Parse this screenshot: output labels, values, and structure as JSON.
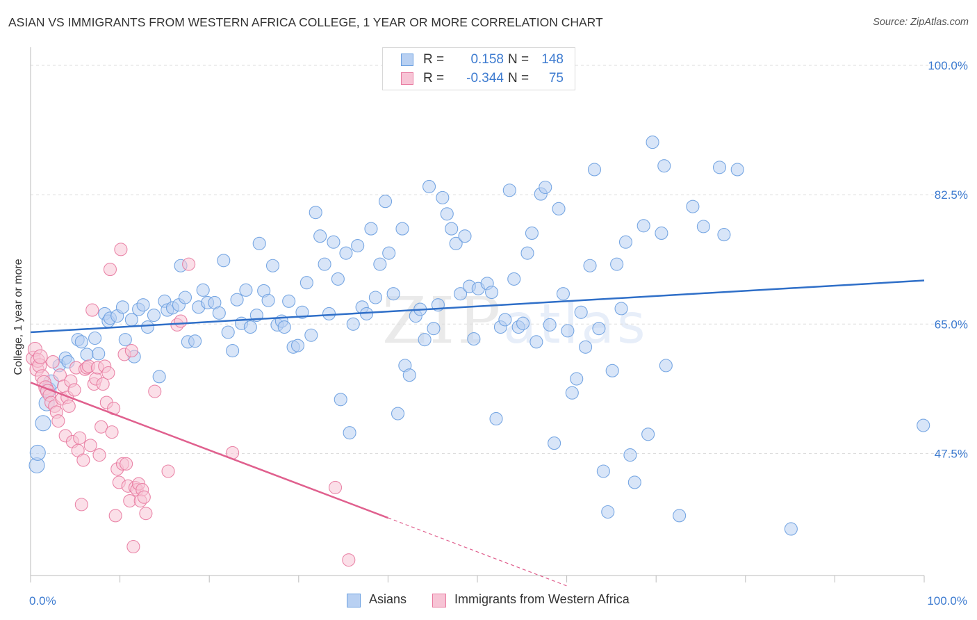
{
  "title": "ASIAN VS IMMIGRANTS FROM WESTERN AFRICA COLLEGE, 1 YEAR OR MORE CORRELATION CHART",
  "source": "Source: ZipAtlas.com",
  "watermark": {
    "zip": "ZIP",
    "atlas": "atlas"
  },
  "colors": {
    "asian": "#6a9fe0",
    "asian_fill": "#b8d0f2",
    "wafrica": "#e87aa0",
    "wafrica_fill": "#f7c4d5",
    "asian_line": "#2f6fc8",
    "wafrica_line": "#e0608e",
    "tick_label": "#3d7bd0"
  },
  "legend_top": [
    {
      "r_label": "R =",
      "r_value": "0.158",
      "n_label": "N =",
      "n_value": "148"
    },
    {
      "r_label": "R =",
      "r_value": "-0.344",
      "n_label": "N =",
      "n_value": "75"
    }
  ],
  "legend_bottom": [
    {
      "label": "Asians"
    },
    {
      "label": "Immigrants from Western Africa"
    }
  ],
  "chart_data": {
    "type": "scatter",
    "title": "ASIAN VS IMMIGRANTS FROM WESTERN AFRICA COLLEGE, 1 YEAR OR MORE CORRELATION CHART",
    "xlabel": "",
    "ylabel": "College, 1 year or more",
    "xlim": [
      0,
      100
    ],
    "ylim": [
      31,
      101.5
    ],
    "x_tick_labels": [
      {
        "value": 0,
        "label": "0.0%"
      },
      {
        "value": 100,
        "label": "100.0%"
      }
    ],
    "y_tick_labels": [
      {
        "value": 100,
        "label": "100.0%"
      },
      {
        "value": 82.5,
        "label": "82.5%"
      },
      {
        "value": 65,
        "label": "65.0%"
      },
      {
        "value": 47.5,
        "label": "47.5%"
      }
    ],
    "grid": true,
    "legend_position": "top-center",
    "series": [
      {
        "name": "Asians",
        "r": 0.158,
        "n": 148,
        "trend": {
          "x0": 0,
          "y0": 63.9,
          "x1": 100,
          "y1": 70.9
        },
        "points": [
          [
            0.7,
            45.9
          ],
          [
            0.8,
            47.6
          ],
          [
            1.4,
            51.6
          ],
          [
            1.8,
            54.3
          ],
          [
            2.0,
            56.1
          ],
          [
            2.3,
            57.1
          ],
          [
            3.2,
            59.4
          ],
          [
            3.9,
            60.4
          ],
          [
            4.2,
            59.9
          ],
          [
            5.3,
            62.9
          ],
          [
            5.7,
            62.6
          ],
          [
            6.3,
            60.9
          ],
          [
            7.2,
            63.1
          ],
          [
            7.6,
            61.0
          ],
          [
            8.3,
            66.4
          ],
          [
            8.7,
            65.4
          ],
          [
            8.9,
            65.8
          ],
          [
            9.7,
            66.1
          ],
          [
            10.3,
            67.3
          ],
          [
            10.6,
            62.9
          ],
          [
            11.3,
            65.6
          ],
          [
            11.6,
            60.6
          ],
          [
            12.1,
            67.0
          ],
          [
            12.6,
            67.6
          ],
          [
            13.1,
            64.6
          ],
          [
            13.8,
            66.2
          ],
          [
            14.4,
            57.9
          ],
          [
            15.0,
            68.1
          ],
          [
            15.3,
            66.9
          ],
          [
            15.9,
            67.2
          ],
          [
            16.6,
            67.6
          ],
          [
            16.8,
            72.9
          ],
          [
            17.3,
            68.6
          ],
          [
            17.6,
            62.6
          ],
          [
            18.4,
            62.7
          ],
          [
            18.8,
            67.3
          ],
          [
            19.3,
            69.6
          ],
          [
            19.8,
            67.9
          ],
          [
            20.6,
            67.9
          ],
          [
            21.1,
            66.5
          ],
          [
            21.6,
            73.6
          ],
          [
            22.1,
            63.9
          ],
          [
            22.6,
            61.4
          ],
          [
            23.1,
            68.3
          ],
          [
            23.6,
            65.1
          ],
          [
            24.1,
            69.6
          ],
          [
            24.6,
            64.6
          ],
          [
            25.3,
            66.2
          ],
          [
            25.6,
            75.9
          ],
          [
            26.1,
            69.5
          ],
          [
            26.6,
            68.2
          ],
          [
            27.1,
            72.9
          ],
          [
            27.6,
            64.9
          ],
          [
            28.1,
            65.4
          ],
          [
            28.4,
            64.6
          ],
          [
            28.9,
            68.1
          ],
          [
            29.4,
            61.9
          ],
          [
            29.9,
            62.1
          ],
          [
            30.4,
            66.6
          ],
          [
            30.9,
            70.6
          ],
          [
            31.4,
            63.5
          ],
          [
            31.9,
            80.1
          ],
          [
            32.4,
            76.9
          ],
          [
            32.9,
            73.1
          ],
          [
            33.4,
            66.4
          ],
          [
            33.9,
            76.1
          ],
          [
            34.4,
            71.1
          ],
          [
            34.7,
            54.8
          ],
          [
            35.3,
            74.6
          ],
          [
            35.7,
            50.3
          ],
          [
            36.1,
            65.0
          ],
          [
            36.6,
            75.6
          ],
          [
            37.1,
            67.3
          ],
          [
            37.6,
            66.4
          ],
          [
            38.1,
            77.9
          ],
          [
            38.6,
            68.6
          ],
          [
            39.1,
            73.1
          ],
          [
            39.7,
            81.6
          ],
          [
            40.1,
            74.6
          ],
          [
            40.6,
            69.1
          ],
          [
            41.1,
            52.9
          ],
          [
            41.6,
            77.9
          ],
          [
            41.9,
            59.4
          ],
          [
            42.4,
            58.1
          ],
          [
            43.1,
            66.1
          ],
          [
            43.6,
            67.0
          ],
          [
            44.1,
            62.9
          ],
          [
            44.6,
            83.6
          ],
          [
            45.1,
            64.4
          ],
          [
            45.6,
            67.6
          ],
          [
            46.1,
            82.1
          ],
          [
            46.6,
            79.9
          ],
          [
            47.1,
            77.9
          ],
          [
            47.6,
            75.9
          ],
          [
            48.1,
            69.1
          ],
          [
            48.6,
            76.9
          ],
          [
            49.1,
            70.1
          ],
          [
            49.6,
            63.0
          ],
          [
            50.1,
            69.8
          ],
          [
            51.1,
            70.5
          ],
          [
            51.6,
            69.3
          ],
          [
            52.1,
            52.2
          ],
          [
            52.6,
            64.6
          ],
          [
            53.1,
            65.6
          ],
          [
            53.6,
            83.1
          ],
          [
            54.1,
            71.1
          ],
          [
            54.6,
            64.6
          ],
          [
            55.1,
            65.1
          ],
          [
            55.6,
            74.6
          ],
          [
            56.1,
            77.3
          ],
          [
            56.6,
            62.6
          ],
          [
            57.1,
            82.6
          ],
          [
            57.6,
            83.5
          ],
          [
            58.1,
            64.9
          ],
          [
            58.6,
            48.9
          ],
          [
            59.1,
            80.6
          ],
          [
            59.6,
            69.1
          ],
          [
            60.1,
            64.1
          ],
          [
            60.6,
            55.7
          ],
          [
            61.1,
            57.6
          ],
          [
            61.6,
            66.6
          ],
          [
            62.1,
            61.9
          ],
          [
            62.6,
            72.9
          ],
          [
            63.1,
            85.9
          ],
          [
            63.6,
            64.4
          ],
          [
            64.1,
            45.1
          ],
          [
            64.6,
            39.6
          ],
          [
            65.1,
            58.7
          ],
          [
            65.6,
            73.1
          ],
          [
            66.1,
            67.1
          ],
          [
            66.6,
            76.1
          ],
          [
            67.1,
            47.3
          ],
          [
            67.6,
            43.6
          ],
          [
            69.1,
            50.1
          ],
          [
            68.6,
            78.3
          ],
          [
            69.6,
            89.6
          ],
          [
            70.6,
            77.3
          ],
          [
            70.9,
            86.4
          ],
          [
            71.1,
            59.4
          ],
          [
            72.6,
            39.1
          ],
          [
            74.1,
            80.9
          ],
          [
            75.3,
            78.2
          ],
          [
            77.1,
            86.2
          ],
          [
            77.6,
            77.1
          ],
          [
            79.1,
            85.9
          ],
          [
            85.1,
            37.3
          ],
          [
            99.9,
            51.3
          ]
        ]
      },
      {
        "name": "Immigrants from Western Africa",
        "r": -0.344,
        "n": 75,
        "trend": {
          "x0": 0,
          "y0": 57.1,
          "x1": 40.0,
          "y1": 38.8,
          "dashed_to": {
            "x": 60.0,
            "y": 29.6
          }
        },
        "points": [
          [
            0.3,
            60.4
          ],
          [
            0.5,
            61.6
          ],
          [
            0.7,
            58.9
          ],
          [
            0.8,
            60.1
          ],
          [
            1.0,
            59.4
          ],
          [
            1.1,
            60.6
          ],
          [
            1.3,
            57.9
          ],
          [
            1.5,
            57.1
          ],
          [
            1.7,
            56.4
          ],
          [
            1.9,
            55.9
          ],
          [
            2.1,
            55.4
          ],
          [
            2.3,
            54.4
          ],
          [
            2.5,
            59.9
          ],
          [
            2.7,
            53.9
          ],
          [
            2.9,
            53.1
          ],
          [
            3.1,
            51.9
          ],
          [
            3.3,
            58.1
          ],
          [
            3.5,
            54.9
          ],
          [
            3.7,
            56.6
          ],
          [
            3.9,
            49.9
          ],
          [
            4.1,
            55.1
          ],
          [
            4.3,
            53.9
          ],
          [
            4.5,
            57.3
          ],
          [
            4.7,
            49.1
          ],
          [
            4.9,
            56.1
          ],
          [
            5.1,
            59.1
          ],
          [
            5.3,
            47.9
          ],
          [
            5.5,
            49.6
          ],
          [
            5.7,
            40.6
          ],
          [
            5.9,
            46.6
          ],
          [
            6.1,
            58.9
          ],
          [
            6.3,
            59.1
          ],
          [
            6.5,
            59.3
          ],
          [
            6.7,
            48.6
          ],
          [
            6.9,
            66.9
          ],
          [
            7.1,
            56.9
          ],
          [
            7.3,
            57.6
          ],
          [
            7.5,
            59.1
          ],
          [
            7.7,
            47.3
          ],
          [
            7.9,
            51.1
          ],
          [
            8.1,
            56.9
          ],
          [
            8.3,
            59.3
          ],
          [
            8.5,
            54.4
          ],
          [
            8.7,
            58.4
          ],
          [
            8.9,
            72.4
          ],
          [
            9.1,
            50.4
          ],
          [
            9.3,
            53.6
          ],
          [
            9.5,
            39.1
          ],
          [
            9.7,
            45.4
          ],
          [
            9.9,
            43.6
          ],
          [
            10.1,
            75.1
          ],
          [
            10.3,
            46.1
          ],
          [
            10.5,
            60.9
          ],
          [
            10.7,
            46.1
          ],
          [
            10.9,
            43.1
          ],
          [
            11.1,
            41.1
          ],
          [
            11.3,
            61.4
          ],
          [
            11.5,
            34.9
          ],
          [
            11.7,
            42.9
          ],
          [
            11.9,
            42.6
          ],
          [
            12.1,
            43.4
          ],
          [
            12.3,
            41.1
          ],
          [
            12.5,
            42.6
          ],
          [
            12.7,
            41.6
          ],
          [
            12.9,
            39.4
          ],
          [
            13.9,
            55.9
          ],
          [
            15.4,
            45.1
          ],
          [
            16.4,
            64.9
          ],
          [
            16.8,
            65.4
          ],
          [
            17.7,
            73.1
          ],
          [
            22.6,
            47.6
          ],
          [
            34.1,
            42.9
          ],
          [
            35.6,
            33.1
          ]
        ]
      }
    ]
  }
}
